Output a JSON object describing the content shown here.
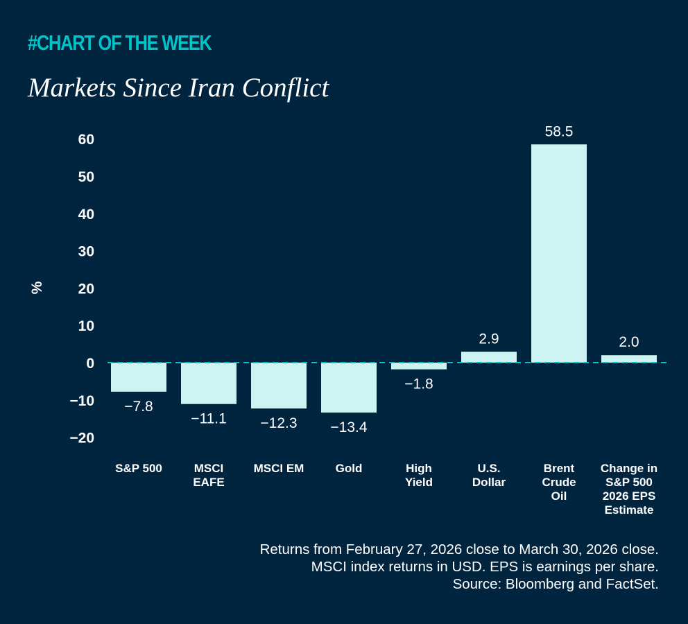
{
  "header": {
    "kicker": "#CHART OF THE WEEK",
    "title": "Markets Since Iran Conflict"
  },
  "chart_data": {
    "type": "bar",
    "title": "Markets Since Iran Conflict",
    "ylabel": "%",
    "xlabel": "",
    "ylim": [
      -20,
      60
    ],
    "yticks": [
      60,
      50,
      40,
      30,
      20,
      10,
      0,
      -10,
      -20
    ],
    "ytick_labels": [
      "60",
      "50",
      "40",
      "30",
      "20",
      "10",
      "0",
      "−10",
      "−20"
    ],
    "categories": [
      [
        "S&P 500"
      ],
      [
        "MSCI",
        "EAFE"
      ],
      [
        "MSCI EM"
      ],
      [
        "Gold"
      ],
      [
        "High",
        "Yield"
      ],
      [
        "U.S.",
        "Dollar"
      ],
      [
        "Brent",
        "Crude",
        "Oil"
      ],
      [
        "Change in",
        "S&P 500",
        "2026 EPS",
        "Estimate"
      ]
    ],
    "values": [
      -7.8,
      -11.1,
      -12.3,
      -13.4,
      -1.8,
      2.9,
      58.5,
      2.0
    ],
    "data_labels": [
      "−7.8",
      "−11.1",
      "−12.3",
      "−13.4",
      "−1.8",
      "2.9",
      "58.5",
      "2.0"
    ],
    "grid": false,
    "zero_line": "dashed",
    "colors": {
      "background": "#01243f",
      "bar": "#cdf3f2",
      "accent": "#00c4c8",
      "text": "#ffffff"
    }
  },
  "footer": {
    "lines": [
      "Returns from February 27, 2026 close to March 30, 2026 close.",
      "MSCI index returns in USD. EPS is earnings per share.",
      "Source: Bloomberg and FactSet."
    ]
  }
}
